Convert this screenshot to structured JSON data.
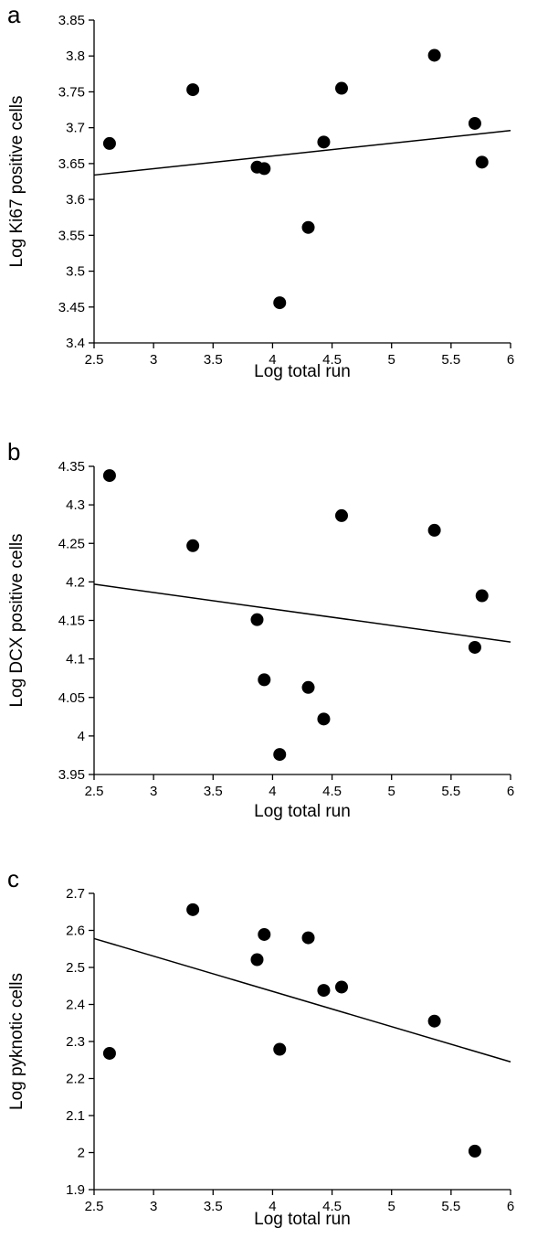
{
  "chart_data": [
    {
      "type": "scatter",
      "panel_label": "a",
      "xlabel": "Log total run",
      "ylabel": "Log Ki67 positive cells",
      "xlim": [
        2.5,
        6
      ],
      "ylim": [
        3.4,
        3.85
      ],
      "x_ticks": [
        "2.5",
        "3",
        "3.5",
        "4",
        "4.5",
        "5",
        "5.5",
        "6"
      ],
      "y_ticks": [
        "3.4",
        "3.45",
        "3.5",
        "3.55",
        "3.6",
        "3.65",
        "3.7",
        "3.75",
        "3.8",
        "3.85"
      ],
      "points": [
        {
          "x": 2.63,
          "y": 3.678
        },
        {
          "x": 3.33,
          "y": 3.753
        },
        {
          "x": 3.87,
          "y": 3.645
        },
        {
          "x": 3.93,
          "y": 3.643
        },
        {
          "x": 4.06,
          "y": 3.456
        },
        {
          "x": 4.3,
          "y": 3.561
        },
        {
          "x": 4.43,
          "y": 3.68
        },
        {
          "x": 4.58,
          "y": 3.755
        },
        {
          "x": 5.36,
          "y": 3.801
        },
        {
          "x": 5.7,
          "y": 3.706
        },
        {
          "x": 5.76,
          "y": 3.652
        }
      ],
      "trendline": [
        {
          "x": 2.5,
          "y": 3.634
        },
        {
          "x": 6,
          "y": 3.696
        }
      ],
      "grid": false,
      "legend": "none"
    },
    {
      "type": "scatter",
      "panel_label": "b",
      "xlabel": "Log total run",
      "ylabel": "Log DCX positive cells",
      "xlim": [
        2.5,
        6
      ],
      "ylim": [
        3.95,
        4.35
      ],
      "x_ticks": [
        "2.5",
        "3",
        "3.5",
        "4",
        "4.5",
        "5",
        "5.5",
        "6"
      ],
      "y_ticks": [
        "3.95",
        "4",
        "4.05",
        "4.1",
        "4.15",
        "4.2",
        "4.25",
        "4.3",
        "4.35"
      ],
      "points": [
        {
          "x": 2.63,
          "y": 4.338
        },
        {
          "x": 3.33,
          "y": 4.247
        },
        {
          "x": 3.87,
          "y": 4.151
        },
        {
          "x": 3.93,
          "y": 4.073
        },
        {
          "x": 4.06,
          "y": 3.976
        },
        {
          "x": 4.3,
          "y": 4.063
        },
        {
          "x": 4.43,
          "y": 4.022
        },
        {
          "x": 4.58,
          "y": 4.286
        },
        {
          "x": 5.36,
          "y": 4.267
        },
        {
          "x": 5.7,
          "y": 4.115
        },
        {
          "x": 5.76,
          "y": 4.182
        }
      ],
      "trendline": [
        {
          "x": 2.5,
          "y": 4.197
        },
        {
          "x": 6,
          "y": 4.122
        }
      ],
      "grid": false,
      "legend": "none"
    },
    {
      "type": "scatter",
      "panel_label": "c",
      "xlabel": "Log total run",
      "ylabel": "Log pyknotic cells",
      "xlim": [
        2.5,
        6
      ],
      "ylim": [
        1.9,
        2.7
      ],
      "x_ticks": [
        "2.5",
        "3",
        "3.5",
        "4",
        "4.5",
        "5",
        "5.5",
        "6"
      ],
      "y_ticks": [
        "1.9",
        "2",
        "2.1",
        "2.2",
        "2.3",
        "2.4",
        "2.5",
        "2.6",
        "2.7"
      ],
      "points": [
        {
          "x": 2.63,
          "y": 2.268
        },
        {
          "x": 3.33,
          "y": 2.656
        },
        {
          "x": 3.87,
          "y": 2.521
        },
        {
          "x": 3.93,
          "y": 2.589
        },
        {
          "x": 4.06,
          "y": 2.279
        },
        {
          "x": 4.3,
          "y": 2.58
        },
        {
          "x": 4.43,
          "y": 2.438
        },
        {
          "x": 4.58,
          "y": 2.447
        },
        {
          "x": 5.36,
          "y": 2.355
        },
        {
          "x": 5.7,
          "y": 2.004
        }
      ],
      "trendline": [
        {
          "x": 2.5,
          "y": 2.578
        },
        {
          "x": 6,
          "y": 2.245
        }
      ],
      "grid": false,
      "legend": "none"
    }
  ]
}
